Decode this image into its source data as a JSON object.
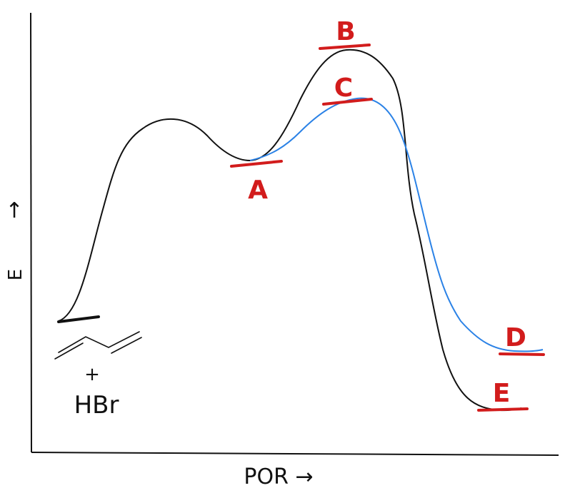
{
  "axes": {
    "y_label": "E",
    "y_arrow": "↑",
    "x_label": "POR →"
  },
  "reactants": {
    "plus": "+",
    "reagent": "HBr"
  },
  "labels": {
    "a": "A",
    "b": "B",
    "c": "C",
    "d": "D",
    "e": "E"
  },
  "colors": {
    "curve_main": "#111111",
    "curve_alt": "#2b82e6",
    "label_color": "#d21c1c"
  }
}
